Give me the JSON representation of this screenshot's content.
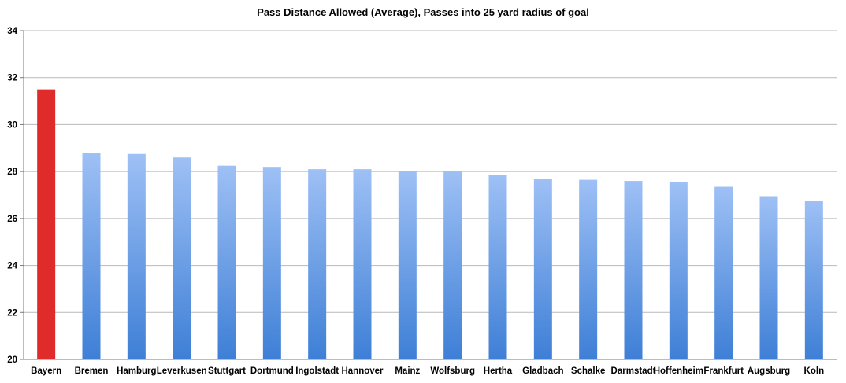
{
  "chart_data": {
    "type": "bar",
    "title": "Pass Distance Allowed (Average), Passes into 25 yard radius of goal",
    "xlabel": "",
    "ylabel": "",
    "ylim": [
      20,
      34
    ],
    "yticks": [
      20,
      22,
      24,
      26,
      28,
      30,
      32,
      34
    ],
    "grid": true,
    "categories": [
      "Bayern",
      "Bremen",
      "Hamburg",
      "Leverkusen",
      "Stuttgart",
      "Dortmund",
      "Ingolstadt",
      "Hannover",
      "Mainz",
      "Wolfsburg",
      "Hertha",
      "Gladbach",
      "Schalke",
      "Darmstadt",
      "Hoffenheim",
      "Frankfurt",
      "Augsburg",
      "Koln"
    ],
    "values": [
      31.5,
      28.8,
      28.75,
      28.6,
      28.25,
      28.2,
      28.1,
      28.1,
      28.0,
      28.0,
      27.85,
      27.7,
      27.65,
      27.6,
      27.55,
      27.35,
      26.95,
      26.75
    ],
    "colors": {
      "highlight": "#e02b2b",
      "bar_top": "#9ec0f5",
      "bar_bottom": "#3e7fd6",
      "grid": "#b9b9b9",
      "axis": "#7a7a7a"
    },
    "highlight_index": 0
  }
}
